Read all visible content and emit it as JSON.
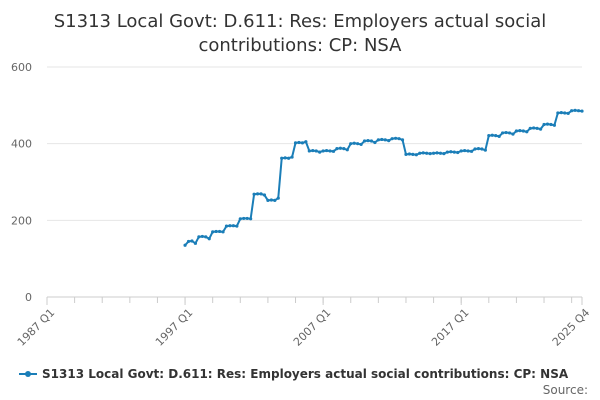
{
  "chart_data": {
    "type": "line",
    "title_lines": [
      "S1313 Local Govt: D.611: Res: Employers actual social",
      "contributions: CP: NSA"
    ],
    "x_tick_labels": [
      "1987 Q1",
      "1997 Q1",
      "2007 Q1",
      "2017 Q1",
      "2025 Q4"
    ],
    "y_tick_labels": [
      "0",
      "200",
      "400",
      "600"
    ],
    "xlim": [
      "1987 Q1",
      "2025 Q4"
    ],
    "ylim": [
      0,
      600
    ],
    "grid": "horizontal",
    "legend_position": "bottom",
    "series": [
      {
        "name": "S1313 Local Govt: D.611: Res: Employers actual social contributions: CP: NSA",
        "color": "#1b7eb8",
        "values": [
          [
            "1997 Q1",
            135
          ],
          [
            "1997 Q2",
            145
          ],
          [
            "1997 Q3",
            146
          ],
          [
            "1997 Q4",
            140
          ],
          [
            "1998 Q1",
            157
          ],
          [
            "1998 Q2",
            158
          ],
          [
            "1998 Q3",
            157
          ],
          [
            "1998 Q4",
            152
          ],
          [
            "1999 Q1",
            170
          ],
          [
            "1999 Q2",
            171
          ],
          [
            "1999 Q3",
            171
          ],
          [
            "1999 Q4",
            170
          ],
          [
            "2000 Q1",
            185
          ],
          [
            "2000 Q2",
            186
          ],
          [
            "2000 Q3",
            186
          ],
          [
            "2000 Q4",
            185
          ],
          [
            "2001 Q1",
            204
          ],
          [
            "2001 Q2",
            205
          ],
          [
            "2001 Q3",
            205
          ],
          [
            "2001 Q4",
            204
          ],
          [
            "2002 Q1",
            268
          ],
          [
            "2002 Q2",
            269
          ],
          [
            "2002 Q3",
            269
          ],
          [
            "2002 Q4",
            266
          ],
          [
            "2003 Q1",
            252
          ],
          [
            "2003 Q2",
            253
          ],
          [
            "2003 Q3",
            252
          ],
          [
            "2003 Q4",
            258
          ],
          [
            "2004 Q1",
            362
          ],
          [
            "2004 Q2",
            363
          ],
          [
            "2004 Q3",
            362
          ],
          [
            "2004 Q4",
            365
          ],
          [
            "2005 Q1",
            402
          ],
          [
            "2005 Q2",
            403
          ],
          [
            "2005 Q3",
            402
          ],
          [
            "2005 Q4",
            405
          ],
          [
            "2006 Q1",
            381
          ],
          [
            "2006 Q2",
            382
          ],
          [
            "2006 Q3",
            381
          ],
          [
            "2006 Q4",
            378
          ],
          [
            "2007 Q1",
            381
          ],
          [
            "2007 Q2",
            382
          ],
          [
            "2007 Q3",
            381
          ],
          [
            "2007 Q4",
            380
          ],
          [
            "2008 Q1",
            387
          ],
          [
            "2008 Q2",
            388
          ],
          [
            "2008 Q3",
            387
          ],
          [
            "2008 Q4",
            384
          ],
          [
            "2009 Q1",
            400
          ],
          [
            "2009 Q2",
            401
          ],
          [
            "2009 Q3",
            400
          ],
          [
            "2009 Q4",
            398
          ],
          [
            "2010 Q1",
            407
          ],
          [
            "2010 Q2",
            408
          ],
          [
            "2010 Q3",
            407
          ],
          [
            "2010 Q4",
            403
          ],
          [
            "2011 Q1",
            410
          ],
          [
            "2011 Q2",
            411
          ],
          [
            "2011 Q3",
            410
          ],
          [
            "2011 Q4",
            408
          ],
          [
            "2012 Q1",
            413
          ],
          [
            "2012 Q2",
            414
          ],
          [
            "2012 Q3",
            413
          ],
          [
            "2012 Q4",
            410
          ],
          [
            "2013 Q1",
            372
          ],
          [
            "2013 Q2",
            373
          ],
          [
            "2013 Q3",
            372
          ],
          [
            "2013 Q4",
            371
          ],
          [
            "2014 Q1",
            375
          ],
          [
            "2014 Q2",
            376
          ],
          [
            "2014 Q3",
            375
          ],
          [
            "2014 Q4",
            374
          ],
          [
            "2015 Q1",
            375
          ],
          [
            "2015 Q2",
            376
          ],
          [
            "2015 Q3",
            375
          ],
          [
            "2015 Q4",
            374
          ],
          [
            "2016 Q1",
            378
          ],
          [
            "2016 Q2",
            379
          ],
          [
            "2016 Q3",
            378
          ],
          [
            "2016 Q4",
            377
          ],
          [
            "2017 Q1",
            381
          ],
          [
            "2017 Q2",
            382
          ],
          [
            "2017 Q3",
            381
          ],
          [
            "2017 Q4",
            380
          ],
          [
            "2018 Q1",
            386
          ],
          [
            "2018 Q2",
            387
          ],
          [
            "2018 Q3",
            386
          ],
          [
            "2018 Q4",
            383
          ],
          [
            "2019 Q1",
            421
          ],
          [
            "2019 Q2",
            422
          ],
          [
            "2019 Q3",
            421
          ],
          [
            "2019 Q4",
            419
          ],
          [
            "2020 Q1",
            428
          ],
          [
            "2020 Q2",
            429
          ],
          [
            "2020 Q3",
            428
          ],
          [
            "2020 Q4",
            425
          ],
          [
            "2021 Q1",
            433
          ],
          [
            "2021 Q2",
            434
          ],
          [
            "2021 Q3",
            433
          ],
          [
            "2021 Q4",
            431
          ],
          [
            "2022 Q1",
            440
          ],
          [
            "2022 Q2",
            441
          ],
          [
            "2022 Q3",
            440
          ],
          [
            "2022 Q4",
            438
          ],
          [
            "2023 Q1",
            450
          ],
          [
            "2023 Q2",
            451
          ],
          [
            "2023 Q3",
            450
          ],
          [
            "2023 Q4",
            448
          ],
          [
            "2024 Q1",
            480
          ],
          [
            "2024 Q2",
            481
          ],
          [
            "2024 Q3",
            480
          ],
          [
            "2024 Q4",
            479
          ],
          [
            "2025 Q1",
            486
          ],
          [
            "2025 Q2",
            487
          ],
          [
            "2025 Q3",
            486
          ],
          [
            "2025 Q4",
            485
          ]
        ]
      }
    ]
  },
  "legend": {
    "label": "S1313 Local Govt: D.611: Res: Employers actual social contributions: CP: NSA"
  },
  "footer": {
    "source_label": "Source:"
  }
}
